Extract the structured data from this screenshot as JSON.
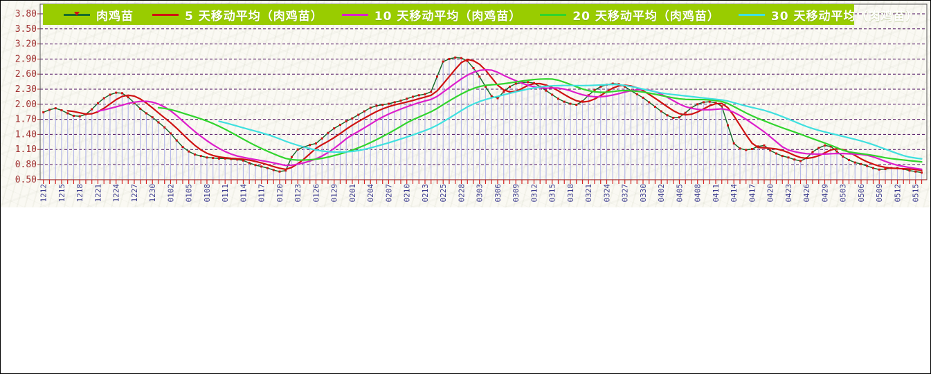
{
  "chart": {
    "legend": {
      "background": "#99cc00",
      "text_color": "#ffffff",
      "items": [
        {
          "label": "肉鸡苗",
          "color": "#176b2d",
          "marker_color": "#cf1212"
        },
        {
          "label": "5 天移动平均（肉鸡苗）",
          "color": "#cf1212"
        },
        {
          "label": "10 天移动平均（肉鸡苗）",
          "color": "#dd1ecb"
        },
        {
          "label": "20 天移动平均（肉鸡苗）",
          "color": "#30d42c"
        },
        {
          "label": "30 天移动平均（肉鸡苗）",
          "color": "#3fe0df"
        }
      ]
    },
    "axes": {
      "y_label_color": "#a03030",
      "x_label_color": "#3c3c8f",
      "grid_color": "#4a0d5e",
      "axis_line_color": "#a03030",
      "tick_color": "#d42222",
      "stem_color": "#b6b9e8",
      "frame_color": "#555555"
    }
  },
  "chart_data": {
    "type": "line",
    "title": "",
    "xlabel": "",
    "ylabel": "",
    "ylim": [
      0.5,
      3.8
    ],
    "grid": true,
    "legend_position": "top",
    "y_ticks": [
      "3.80",
      "3.50",
      "3.20",
      "2.90",
      "2.60",
      "2.30",
      "2.00",
      "1.70",
      "1.40",
      "1.10",
      "0.80",
      "0.50"
    ],
    "x_tick_labels": [
      "1212",
      "1215",
      "1218",
      "1221",
      "1224",
      "1227",
      "1230",
      "0102",
      "0105",
      "0108",
      "0111",
      "0114",
      "0117",
      "0120",
      "0123",
      "0126",
      "0129",
      "0201",
      "0204",
      "0207",
      "0210",
      "0213",
      "0225",
      "0228",
      "0303",
      "0306",
      "0309",
      "0312",
      "0315",
      "0318",
      "0321",
      "0324",
      "0327",
      "0330",
      "0402",
      "0405",
      "0408",
      "0411",
      "0414",
      "0417",
      "0420",
      "0423",
      "0426",
      "0429",
      "0503",
      "0506",
      "0509",
      "0512",
      "0515"
    ],
    "x_label_every": 3,
    "series": [
      {
        "name": "肉鸡苗",
        "style": "line+markers+stems",
        "color": "#176b2d",
        "marker_color": "#cf1212",
        "values": [
          1.84,
          1.89,
          1.92,
          1.88,
          1.82,
          1.77,
          1.76,
          1.8,
          1.9,
          2.02,
          2.12,
          2.19,
          2.23,
          2.22,
          2.14,
          2.03,
          1.91,
          1.82,
          1.74,
          1.64,
          1.54,
          1.42,
          1.28,
          1.15,
          1.06,
          1.0,
          0.97,
          0.94,
          0.93,
          0.92,
          0.92,
          0.91,
          0.9,
          0.88,
          0.83,
          0.79,
          0.76,
          0.73,
          0.69,
          0.66,
          0.68,
          0.95,
          1.1,
          1.15,
          1.19,
          1.22,
          1.32,
          1.43,
          1.52,
          1.59,
          1.66,
          1.72,
          1.79,
          1.86,
          1.93,
          1.97,
          1.99,
          2.01,
          2.04,
          2.07,
          2.11,
          2.15,
          2.18,
          2.2,
          2.25,
          2.55,
          2.85,
          2.9,
          2.93,
          2.92,
          2.86,
          2.72,
          2.55,
          2.35,
          2.16,
          2.12,
          2.25,
          2.35,
          2.41,
          2.43,
          2.44,
          2.42,
          2.35,
          2.27,
          2.19,
          2.11,
          2.05,
          2.01,
          1.99,
          2.06,
          2.18,
          2.28,
          2.35,
          2.39,
          2.41,
          2.4,
          2.35,
          2.27,
          2.2,
          2.13,
          2.04,
          1.95,
          1.86,
          1.78,
          1.73,
          1.74,
          1.83,
          1.93,
          2.0,
          2.04,
          2.05,
          2.03,
          1.96,
          1.58,
          1.22,
          1.12,
          1.09,
          1.11,
          1.16,
          1.18,
          1.08,
          1.02,
          0.97,
          0.94,
          0.9,
          0.87,
          0.93,
          1.05,
          1.13,
          1.18,
          1.16,
          1.06,
          0.96,
          0.89,
          0.84,
          0.81,
          0.77,
          0.73,
          0.7,
          0.71,
          0.73,
          0.73,
          0.71,
          0.68,
          0.66,
          0.64
        ]
      },
      {
        "name": "5 天移动平均（肉鸡苗）",
        "derived": "moving_average",
        "window": 5,
        "color": "#cf1212"
      },
      {
        "name": "10 天移动平均（肉鸡苗）",
        "derived": "moving_average",
        "window": 10,
        "color": "#dd1ecb"
      },
      {
        "name": "20 天移动平均（肉鸡苗）",
        "derived": "moving_average",
        "window": 20,
        "color": "#30d42c"
      },
      {
        "name": "30 天移动平均（肉鸡苗）",
        "derived": "moving_average",
        "window": 30,
        "color": "#3fe0df"
      }
    ]
  }
}
